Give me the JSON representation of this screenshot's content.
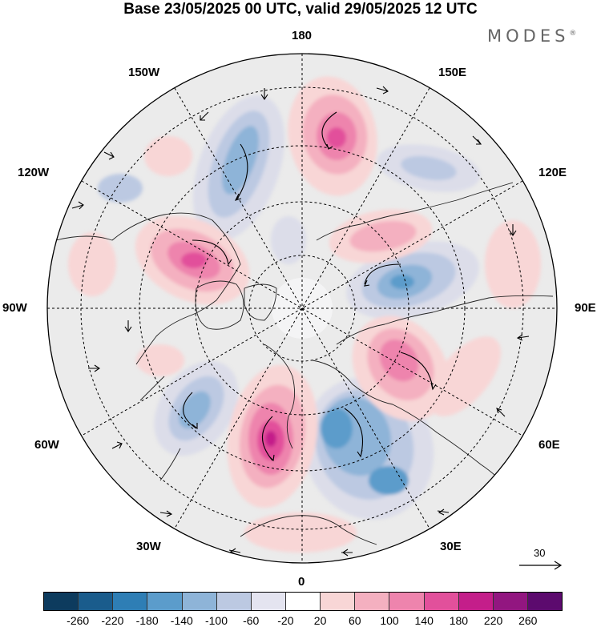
{
  "title": "Base 23/05/2025 00 UTC, valid 29/05/2025 12 UTC",
  "brand": "MODES",
  "brand_mark": "®",
  "longitude_labels": {
    "top": "180",
    "top_left": "150W",
    "top_right": "150E",
    "upper_left": "120W",
    "upper_right": "120E",
    "left": "90W",
    "right": "90E",
    "lower_left": "60W",
    "lower_right": "60E",
    "bottom_left": "30W",
    "bottom_right": "30E",
    "bottom": "0"
  },
  "reference_vector_label": "30",
  "colorbar": {
    "colors": [
      "#0d3b5e",
      "#1a5c8c",
      "#2e7eb5",
      "#5b9ccb",
      "#8eb4d8",
      "#bcc9e2",
      "#e4e4f0",
      "#ffffff",
      "#f8d6d6",
      "#f4b0c0",
      "#ee84ad",
      "#e2509b",
      "#c41e8a",
      "#921680",
      "#5c0a6e"
    ],
    "tick_labels": [
      "-260",
      "-220",
      "-180",
      "-140",
      "-100",
      "-60",
      "-20",
      "20",
      "60",
      "100",
      "140",
      "180",
      "220",
      "260"
    ]
  },
  "map": {
    "projection": "north-polar-stereographic",
    "field": "anomaly",
    "latitude_circles": true,
    "longitude_lines": true
  }
}
